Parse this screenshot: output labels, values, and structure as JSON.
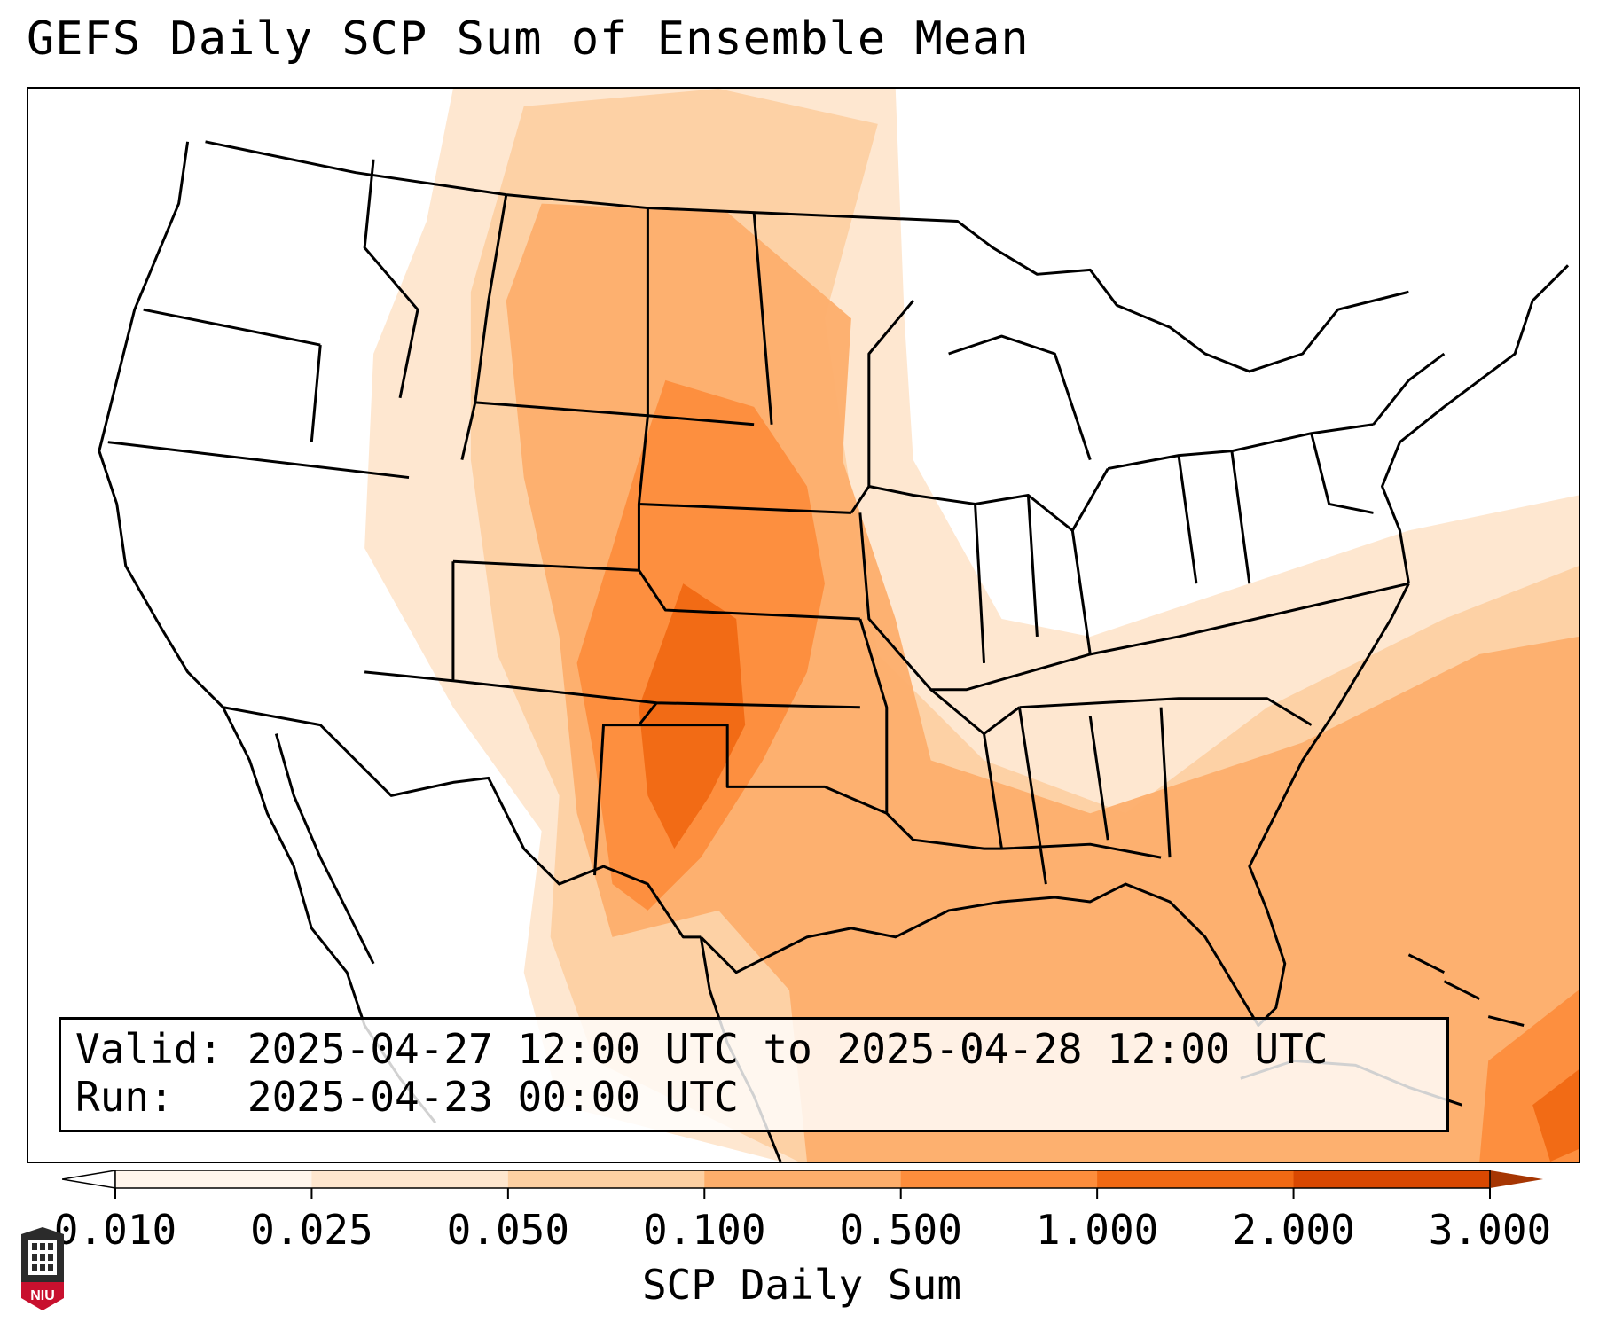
{
  "title": "GEFS Daily SCP Sum of Ensemble Mean",
  "info": {
    "valid_label": "Valid:",
    "valid_value": "2025-04-27 12:00 UTC to 2025-04-28 12:00 UTC",
    "run_label": "Run:",
    "run_value": "2025-04-23 00:00 UTC"
  },
  "colorbar": {
    "label": "SCP Daily Sum",
    "ticks": [
      "0.010",
      "0.025",
      "0.050",
      "0.100",
      "0.500",
      "1.000",
      "2.000",
      "3.000"
    ],
    "colors": [
      "#fff5eb",
      "#fee6ce",
      "#fdd0a2",
      "#fdae6b",
      "#fd8d3c",
      "#f16913",
      "#d94801"
    ],
    "extend": "both"
  },
  "logo": {
    "text": "NIU",
    "colors": {
      "shield": "#2b2b2b",
      "band": "#c8102e"
    }
  },
  "map": {
    "domain": "North America / CONUS (Lambert conformal)",
    "field": "SCP daily sum, ensemble mean",
    "regions": [
      {
        "name": "Northern Plains (MT/ND/SD/WY)",
        "level": 3
      },
      {
        "name": "Nebraska / Kansas",
        "level": 4
      },
      {
        "name": "West Texas / SE New Mexico / Oklahoma",
        "level": 5
      },
      {
        "name": "Gulf Coast / Lower Mississippi Valley",
        "level": 3
      },
      {
        "name": "Southeast US / Western Atlantic",
        "level": 3
      },
      {
        "name": "Northwestern Caribbean",
        "level": 5
      }
    ]
  }
}
